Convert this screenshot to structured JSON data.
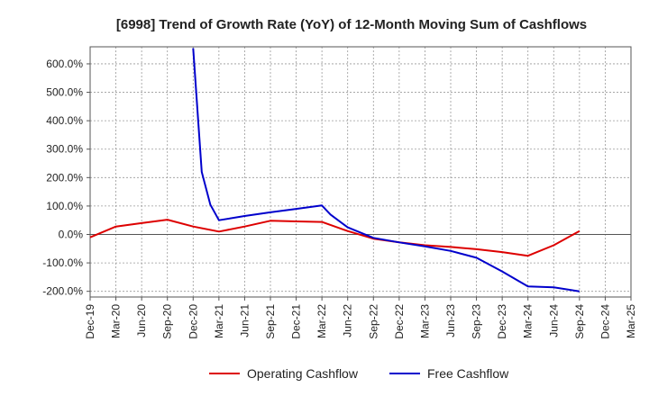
{
  "chart_data": {
    "type": "line",
    "title": "[6998]  Trend of Growth Rate (YoY) of 12-Month Moving Sum of Cashflows",
    "xlabel": "",
    "ylabel": "",
    "x_ticks": [
      "Dec-19",
      "Mar-20",
      "Jun-20",
      "Sep-20",
      "Dec-20",
      "Mar-21",
      "Jun-21",
      "Sep-21",
      "Dec-21",
      "Mar-22",
      "Jun-22",
      "Sep-22",
      "Dec-22",
      "Mar-23",
      "Jun-23",
      "Sep-23",
      "Dec-23",
      "Mar-24",
      "Jun-24",
      "Sep-24",
      "Dec-24",
      "Mar-25"
    ],
    "y_ticks": [
      600,
      500,
      400,
      300,
      200,
      100,
      0,
      -100,
      -200
    ],
    "y_tick_labels": [
      "600.0%",
      "500.0%",
      "400.0%",
      "300.0%",
      "200.0%",
      "100.0%",
      "0.0%",
      "-100.0%",
      "-200.0%"
    ],
    "ylim": [
      -220,
      660
    ],
    "grid": true,
    "legend_position": "bottom",
    "series": [
      {
        "name": "Operating Cashflow",
        "color": "#dd0000",
        "points": [
          [
            "Dec-19",
            -10
          ],
          [
            "Mar-20",
            28
          ],
          [
            "Jun-20",
            40
          ],
          [
            "Sep-20",
            52
          ],
          [
            "Dec-20",
            28
          ],
          [
            "Mar-21",
            10
          ],
          [
            "Jun-21",
            28
          ],
          [
            "Sep-21",
            48
          ],
          [
            "Dec-21",
            46
          ],
          [
            "Mar-22",
            44
          ],
          [
            "Jun-22",
            12
          ],
          [
            "Sep-22",
            -15
          ],
          [
            "Dec-22",
            -28
          ],
          [
            "Mar-23",
            -38
          ],
          [
            "Jun-23",
            -44
          ],
          [
            "Sep-23",
            -52
          ],
          [
            "Dec-23",
            -62
          ],
          [
            "Mar-24",
            -75
          ],
          [
            "Jun-24",
            -38
          ],
          [
            "Sep-24",
            12
          ]
        ]
      },
      {
        "name": "Free Cashflow",
        "color": "#0000cc",
        "points": [
          [
            "Dec-20",
            655
          ],
          [
            "Jan-21",
            220
          ],
          [
            "Feb-21",
            105
          ],
          [
            "Mar-21",
            50
          ],
          [
            "Jun-21",
            65
          ],
          [
            "Sep-21",
            78
          ],
          [
            "Dec-21",
            90
          ],
          [
            "Mar-22",
            102
          ],
          [
            "Apr-22",
            70
          ],
          [
            "Jun-22",
            25
          ],
          [
            "Sep-22",
            -12
          ],
          [
            "Dec-22",
            -28
          ],
          [
            "Mar-23",
            -42
          ],
          [
            "Jun-23",
            -58
          ],
          [
            "Sep-23",
            -82
          ],
          [
            "Dec-23",
            -130
          ],
          [
            "Mar-24",
            -183
          ],
          [
            "Jun-24",
            -186
          ],
          [
            "Sep-24",
            -200
          ]
        ]
      }
    ]
  }
}
